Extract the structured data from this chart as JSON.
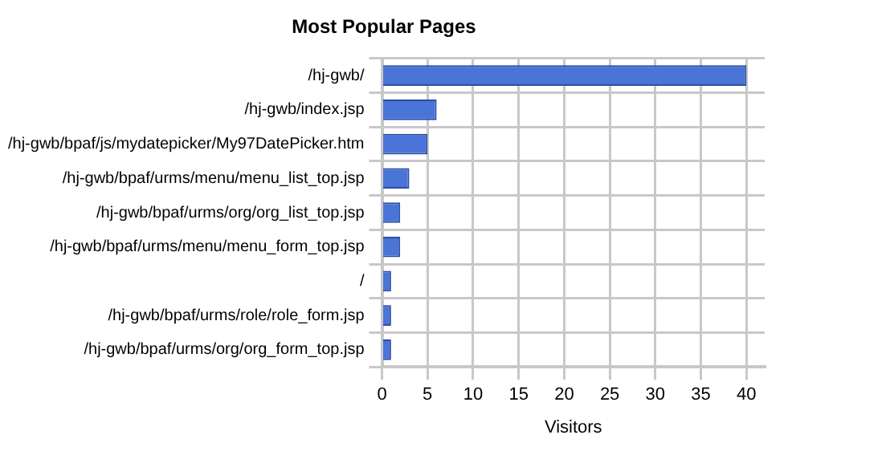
{
  "chart_data": {
    "type": "bar",
    "orientation": "horizontal",
    "title": "Most Popular Pages",
    "xlabel": "Visitors",
    "categories": [
      "/hj-gwb/",
      "/hj-gwb/index.jsp",
      "/hj-gwb/bpaf/js/mydatepicker/My97DatePicker.htm",
      "/hj-gwb/bpaf/urms/menu/menu_list_top.jsp",
      "/hj-gwb/bpaf/urms/org/org_list_top.jsp",
      "/hj-gwb/bpaf/urms/menu/menu_form_top.jsp",
      "/",
      "/hj-gwb/bpaf/urms/role/role_form.jsp",
      "/hj-gwb/bpaf/urms/org/org_form_top.jsp"
    ],
    "values": [
      40,
      6,
      5,
      3,
      2,
      2,
      1,
      1,
      1
    ],
    "color": "#4a74d6",
    "xlim": [
      0,
      42
    ],
    "xticks": [
      0,
      5,
      10,
      15,
      20,
      25,
      30,
      35,
      40
    ],
    "grid": true
  }
}
